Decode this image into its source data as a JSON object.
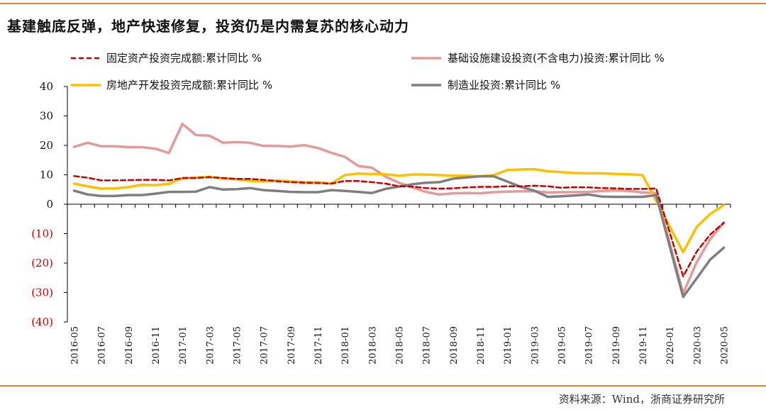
{
  "header": {
    "title": "基建触底反弹，地产快速修复，投资仍是内需复苏的核心动力"
  },
  "footer": {
    "source": "资料来源：Wind，浙商证券研究所"
  },
  "colors": {
    "accent": "#E8813A",
    "negative_tick": "#C00000",
    "fixed_asset": "#C00000",
    "infrastructure": "#E39A9A",
    "real_estate": "#FFC000",
    "manufacturing": "#7F7F7F"
  },
  "chart_data": {
    "type": "line",
    "title": "",
    "xlabel": "",
    "ylabel": "",
    "ylim": [
      -40,
      40
    ],
    "yticks": [
      40,
      30,
      20,
      10,
      0,
      -10,
      -20,
      -30,
      -40
    ],
    "ytick_labels": [
      "40",
      "30",
      "20",
      "10",
      "0",
      "(10)",
      "(20)",
      "(30)",
      "(40)"
    ],
    "x": [
      "2016-05",
      "2016-06",
      "2016-07",
      "2016-08",
      "2016-09",
      "2016-10",
      "2016-11",
      "2016-12",
      "2017-01",
      "2017-02",
      "2017-03",
      "2017-04",
      "2017-05",
      "2017-06",
      "2017-07",
      "2017-08",
      "2017-09",
      "2017-10",
      "2017-11",
      "2017-12",
      "2018-01",
      "2018-02",
      "2018-03",
      "2018-04",
      "2018-05",
      "2018-06",
      "2018-07",
      "2018-08",
      "2018-09",
      "2018-10",
      "2018-11",
      "2018-12",
      "2019-01",
      "2019-02",
      "2019-03",
      "2019-04",
      "2019-05",
      "2019-06",
      "2019-07",
      "2019-08",
      "2019-09",
      "2019-10",
      "2019-11",
      "2019-12",
      "2020-01",
      "2020-02",
      "2020-03",
      "2020-04",
      "2020-05"
    ],
    "xtick_labels": [
      "2016-05",
      "2016-07",
      "2016-09",
      "2016-11",
      "2017-01",
      "2017-03",
      "2017-05",
      "2017-07",
      "2017-09",
      "2017-11",
      "2018-01",
      "2018-03",
      "2018-05",
      "2018-07",
      "2018-09",
      "2018-11",
      "2019-01",
      "2019-03",
      "2019-05",
      "2019-07",
      "2019-09",
      "2019-11",
      "2020-01",
      "2020-03",
      "2020-05"
    ],
    "legend": "top",
    "series": [
      {
        "name": "固定资产投资完成额:累计同比 %",
        "style": "dashed",
        "color": "#C00000",
        "values": [
          9.6,
          9.0,
          8.1,
          8.1,
          8.2,
          8.3,
          8.3,
          8.1,
          8.9,
          8.9,
          9.2,
          8.9,
          8.6,
          8.6,
          8.3,
          7.8,
          7.5,
          7.3,
          7.2,
          7.0,
          7.9,
          7.9,
          7.5,
          7.0,
          6.1,
          6.0,
          5.5,
          5.3,
          5.4,
          5.7,
          5.9,
          5.9,
          6.1,
          6.1,
          6.3,
          6.1,
          5.6,
          5.8,
          5.7,
          5.5,
          5.4,
          5.2,
          5.2,
          5.4,
          null,
          -24.5,
          -16.1,
          -10.3,
          -6.3
        ]
      },
      {
        "name": "基础设施建设投资(不含电力)投资:累计同比 %",
        "style": "solid",
        "color": "#E39A9A",
        "values": [
          19.5,
          20.9,
          19.7,
          19.7,
          19.4,
          19.4,
          18.9,
          17.4,
          27.3,
          23.5,
          23.3,
          20.9,
          21.1,
          20.9,
          19.8,
          19.8,
          19.6,
          20.1,
          19.1,
          17.5,
          16.1,
          13.0,
          12.4,
          9.4,
          7.3,
          5.7,
          4.2,
          3.3,
          3.7,
          3.8,
          3.7,
          4.1,
          4.3,
          4.4,
          4.4,
          4.0,
          4.1,
          4.1,
          4.2,
          4.5,
          4.7,
          4.5,
          4.0,
          3.8,
          null,
          -30.3,
          -19.7,
          -11.8,
          -6.3
        ]
      },
      {
        "name": "房地产开发投资完成额:累计同比 %",
        "style": "solid",
        "color": "#FFC000",
        "values": [
          7.0,
          6.1,
          5.3,
          5.4,
          5.8,
          6.6,
          6.5,
          6.9,
          8.9,
          9.1,
          9.3,
          8.8,
          8.5,
          7.9,
          7.8,
          8.1,
          7.8,
          7.5,
          7.5,
          7.0,
          9.9,
          10.4,
          10.3,
          10.2,
          9.7,
          10.1,
          10.1,
          9.9,
          9.7,
          9.7,
          9.5,
          9.9,
          11.6,
          11.8,
          11.9,
          11.2,
          10.9,
          10.6,
          10.5,
          10.5,
          10.3,
          10.2,
          9.9,
          null,
          null,
          -16.3,
          -7.7,
          -3.3,
          -0.3
        ]
      },
      {
        "name": "制造业投资:累计同比 %",
        "style": "solid",
        "color": "#7F7F7F",
        "values": [
          4.6,
          3.3,
          2.8,
          2.8,
          3.1,
          3.1,
          3.6,
          4.2,
          4.2,
          4.3,
          5.8,
          5.0,
          5.1,
          5.5,
          4.8,
          4.5,
          4.2,
          4.1,
          4.1,
          4.8,
          4.5,
          4.2,
          3.8,
          5.2,
          6.0,
          6.8,
          7.3,
          7.5,
          8.7,
          9.1,
          9.5,
          9.5,
          7.7,
          5.9,
          4.6,
          2.5,
          2.7,
          3.0,
          3.3,
          2.6,
          2.5,
          2.5,
          2.5,
          3.1,
          null,
          -31.5,
          -25.2,
          -18.8,
          -14.8
        ]
      }
    ]
  }
}
